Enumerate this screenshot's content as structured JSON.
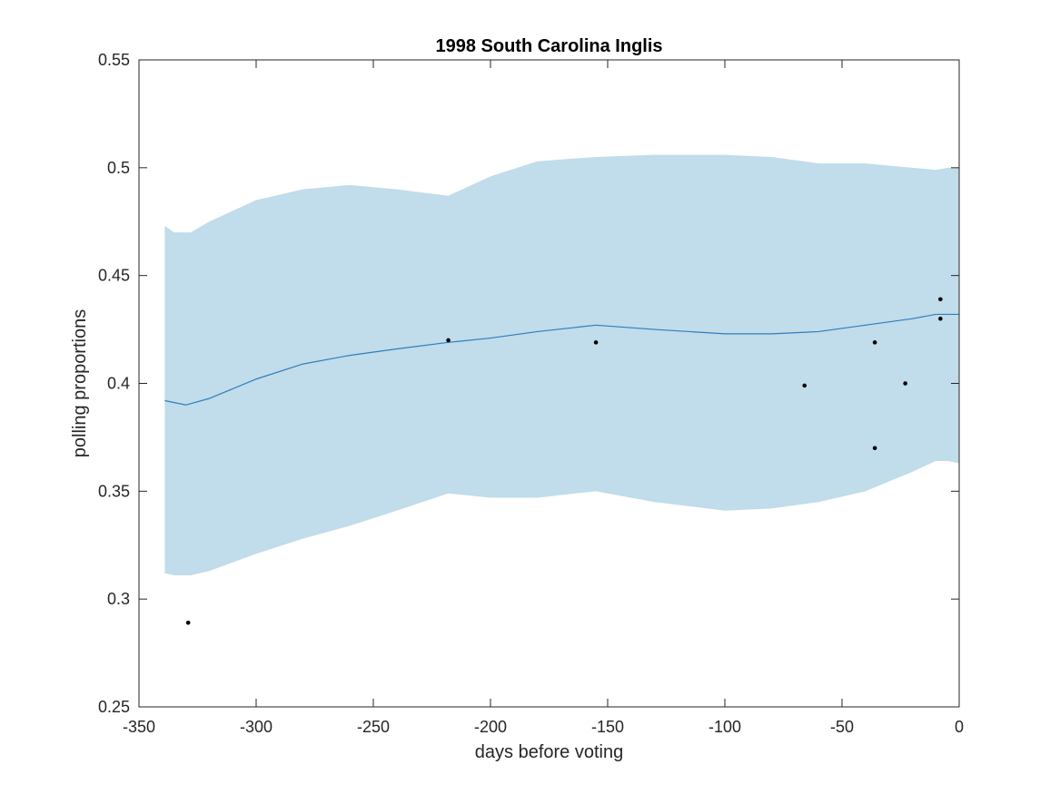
{
  "chart_data": {
    "type": "line",
    "title": "1998 South Carolina Inglis",
    "xlabel": "days before voting",
    "ylabel": "polling proportions",
    "xlim": [
      -350,
      0
    ],
    "ylim": [
      0.25,
      0.55
    ],
    "xticks": [
      -350,
      -300,
      -250,
      -200,
      -150,
      -100,
      -50,
      0
    ],
    "xtick_labels": [
      "-350",
      "-300",
      "-250",
      "-200",
      "-150",
      "-100",
      "-50",
      "0"
    ],
    "yticks": [
      0.25,
      0.3,
      0.35,
      0.4,
      0.45,
      0.5,
      0.55
    ],
    "ytick_labels": [
      "0.25",
      "0.3",
      "0.35",
      "0.4",
      "0.45",
      "0.5",
      "0.55"
    ],
    "grid": false,
    "colors": {
      "band": "#c1dcea",
      "trend": "#2f7ebd",
      "points": "#000000",
      "axes": "#262626"
    },
    "band": {
      "x": [
        -339,
        -335,
        -328,
        -320,
        -300,
        -280,
        -260,
        -240,
        -218,
        -200,
        -180,
        -155,
        -130,
        -100,
        -80,
        -60,
        -40,
        -20,
        -10,
        -5,
        0
      ],
      "upper": [
        0.473,
        0.47,
        0.47,
        0.475,
        0.485,
        0.49,
        0.492,
        0.49,
        0.487,
        0.496,
        0.503,
        0.505,
        0.506,
        0.506,
        0.505,
        0.502,
        0.502,
        0.5,
        0.499,
        0.5,
        0.5
      ],
      "lower": [
        0.312,
        0.311,
        0.311,
        0.313,
        0.321,
        0.328,
        0.334,
        0.341,
        0.349,
        0.347,
        0.347,
        0.35,
        0.345,
        0.341,
        0.342,
        0.345,
        0.35,
        0.359,
        0.364,
        0.364,
        0.363
      ]
    },
    "series": [
      {
        "type": "line",
        "x": [
          -339,
          -330,
          -320,
          -300,
          -280,
          -260,
          -240,
          -218,
          -200,
          -180,
          -155,
          -130,
          -100,
          -80,
          -60,
          -40,
          -20,
          -10,
          -5,
          0
        ],
        "y": [
          0.392,
          0.39,
          0.393,
          0.402,
          0.409,
          0.413,
          0.416,
          0.419,
          0.421,
          0.424,
          0.427,
          0.425,
          0.423,
          0.423,
          0.424,
          0.427,
          0.43,
          0.432,
          0.432,
          0.432
        ]
      },
      {
        "type": "scatter",
        "x": [
          -329,
          -218,
          -155,
          -66,
          -36,
          -36,
          -23,
          -8,
          -8
        ],
        "y": [
          0.289,
          0.42,
          0.419,
          0.399,
          0.419,
          0.37,
          0.4,
          0.439,
          0.43
        ]
      }
    ]
  }
}
